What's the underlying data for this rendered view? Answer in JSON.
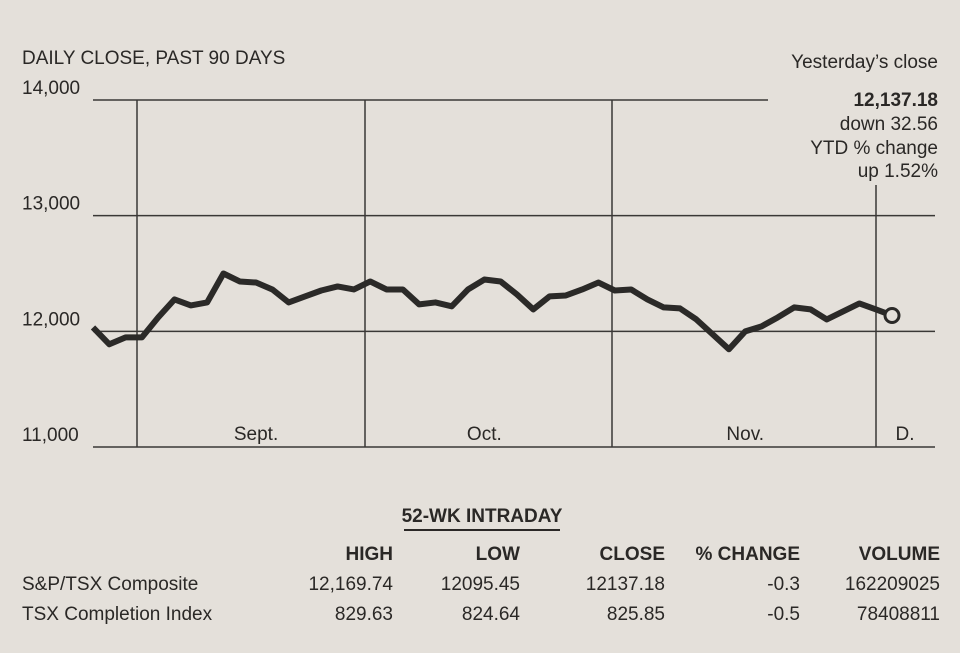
{
  "chart_data": {
    "type": "line",
    "title": "DAILY CLOSE, PAST 90 DAYS",
    "categories": [
      null,
      null,
      null,
      null,
      null,
      null,
      null,
      null,
      null,
      null,
      "Sept.",
      null,
      null,
      null,
      null,
      null,
      null,
      null,
      null,
      null,
      null,
      null,
      null,
      null,
      "Oct.",
      null,
      null,
      null,
      null,
      null,
      null,
      null,
      null,
      null,
      null,
      null,
      null,
      null,
      null,
      null,
      "Nov.",
      null,
      null,
      null,
      null,
      null,
      null,
      null,
      null,
      "D."
    ],
    "series": [
      {
        "color": "#2b2a28",
        "values": [
          12034,
          11888,
          11948,
          11948,
          12121,
          12276,
          12224,
          12250,
          12500,
          12431,
          12422,
          12362,
          12250,
          12302,
          12353,
          12388,
          12362,
          12431,
          12362,
          12362,
          12233,
          12250,
          12216,
          12362,
          12448,
          12431,
          12319,
          12190,
          12302,
          12310,
          12362,
          12422,
          12353,
          12362,
          12276,
          12207,
          12198,
          12103,
          11974,
          11845,
          12000,
          12043,
          12121,
          12207,
          12190,
          12103,
          12172,
          12241,
          12190,
          12137.18
        ]
      }
    ],
    "ylim": [
      11000,
      14000
    ],
    "yticks": [
      {
        "value": 11000,
        "label": "11,000"
      },
      {
        "value": 12000,
        "label": "12,000"
      },
      {
        "value": 13000,
        "label": "13,000"
      },
      {
        "value": 14000,
        "label": "14,000"
      }
    ],
    "grid": true,
    "annotations": [
      "Yesterday’s close",
      "12,137.18",
      "down 32.56",
      "YTD % change",
      "up 1.52%"
    ]
  },
  "table": {
    "title": "52-WK INTRADAY",
    "header": [
      "HIGH",
      "LOW",
      "CLOSE",
      "% CHANGE",
      "VOLUME"
    ],
    "rows": [
      [
        "S&P/TSX Composite",
        "12,169.74",
        "12095.45",
        "12137.18",
        "-0.3",
        "162209025"
      ],
      [
        "TSX Completion Index",
        "829.63",
        "824.64",
        "825.85",
        "-0.5",
        "78408811"
      ]
    ]
  }
}
